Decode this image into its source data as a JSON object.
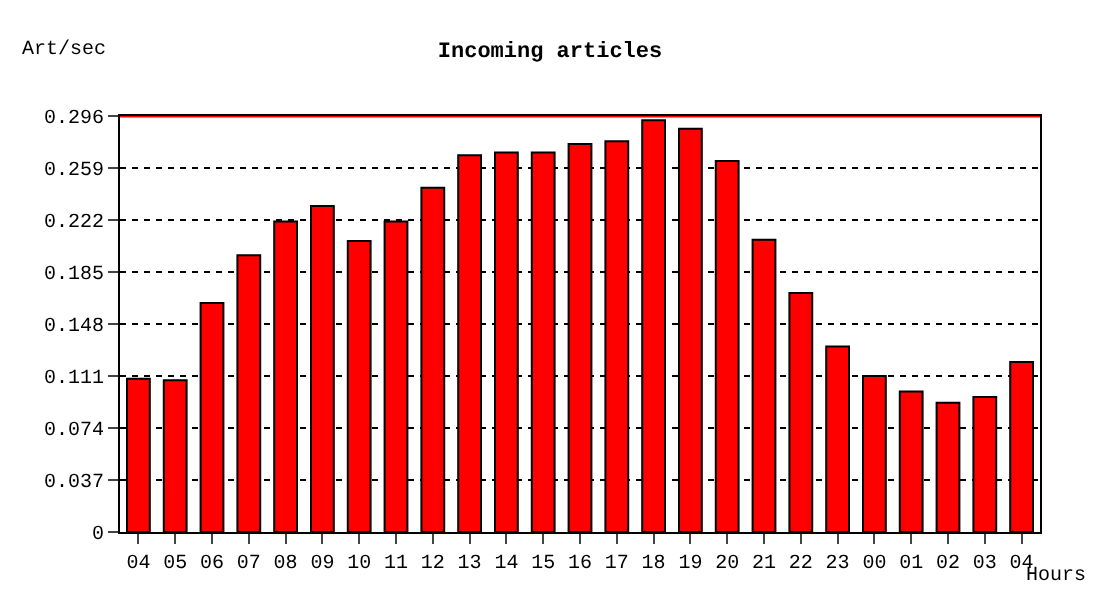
{
  "chart_data": {
    "type": "bar",
    "title": "Incoming articles",
    "ylabel": "Art/sec",
    "xlabel": "Hours",
    "categories": [
      "04",
      "05",
      "06",
      "07",
      "08",
      "09",
      "10",
      "11",
      "12",
      "13",
      "14",
      "15",
      "16",
      "17",
      "18",
      "19",
      "20",
      "21",
      "22",
      "23",
      "00",
      "01",
      "02",
      "03",
      "04"
    ],
    "values": [
      0.109,
      0.108,
      0.163,
      0.197,
      0.221,
      0.232,
      0.207,
      0.221,
      0.245,
      0.268,
      0.27,
      0.27,
      0.276,
      0.278,
      0.293,
      0.287,
      0.264,
      0.208,
      0.17,
      0.132,
      0.111,
      0.1,
      0.092,
      0.096,
      0.121
    ],
    "color": "#ff0000",
    "ylim": [
      0,
      0.296
    ],
    "yticks": [
      0,
      0.037,
      0.074,
      0.111,
      0.148,
      0.185,
      0.222,
      0.259,
      0.296
    ],
    "grid": "y",
    "line_style": "dotted",
    "ref_lines": [
      {
        "axis": "y",
        "value": 0.296,
        "color": "#ff0000"
      }
    ]
  }
}
